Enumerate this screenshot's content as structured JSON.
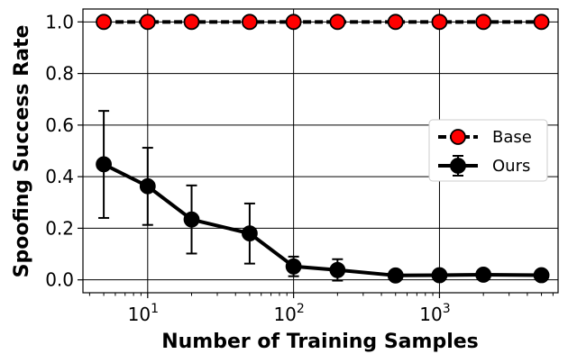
{
  "chart_data": {
    "type": "line",
    "xlabel": "Number of Training Samples",
    "ylabel": "Spoofing Success Rate",
    "xscale": "log",
    "xlim": [
      3.6,
      6500
    ],
    "ylim": [
      -0.05,
      1.05
    ],
    "yticks": [
      {
        "value": 0.0,
        "label": "0.0"
      },
      {
        "value": 0.2,
        "label": "0.2"
      },
      {
        "value": 0.4,
        "label": "0.4"
      },
      {
        "value": 0.6,
        "label": "0.6"
      },
      {
        "value": 0.8,
        "label": "0.8"
      },
      {
        "value": 1.0,
        "label": "1.0"
      }
    ],
    "xticks": [
      {
        "value": 10,
        "base": "10",
        "exp": "1"
      },
      {
        "value": 100,
        "base": "10",
        "exp": "2"
      },
      {
        "value": 1000,
        "base": "10",
        "exp": "3"
      }
    ],
    "grid": true,
    "legend_position": "right",
    "x": [
      5,
      10,
      20,
      50,
      100,
      200,
      500,
      1000,
      2000,
      5000
    ],
    "series": [
      {
        "name": "Base",
        "color": "#ff0000",
        "line_style": "dashed",
        "values": [
          1.0,
          1.0,
          1.0,
          1.0,
          1.0,
          1.0,
          1.0,
          1.0,
          1.0,
          1.0
        ]
      },
      {
        "name": "Ours",
        "color": "#000000",
        "line_style": "solid",
        "values": [
          0.448,
          0.363,
          0.234,
          0.18,
          0.052,
          0.038,
          0.017,
          0.018,
          0.02,
          0.018
        ],
        "err_low": [
          0.24,
          0.213,
          0.102,
          0.063,
          0.014,
          -0.003,
          0.017,
          0.018,
          0.02,
          0.018
        ],
        "err_high": [
          0.655,
          0.512,
          0.366,
          0.296,
          0.09,
          0.08,
          0.017,
          0.018,
          0.02,
          0.018
        ]
      }
    ]
  }
}
